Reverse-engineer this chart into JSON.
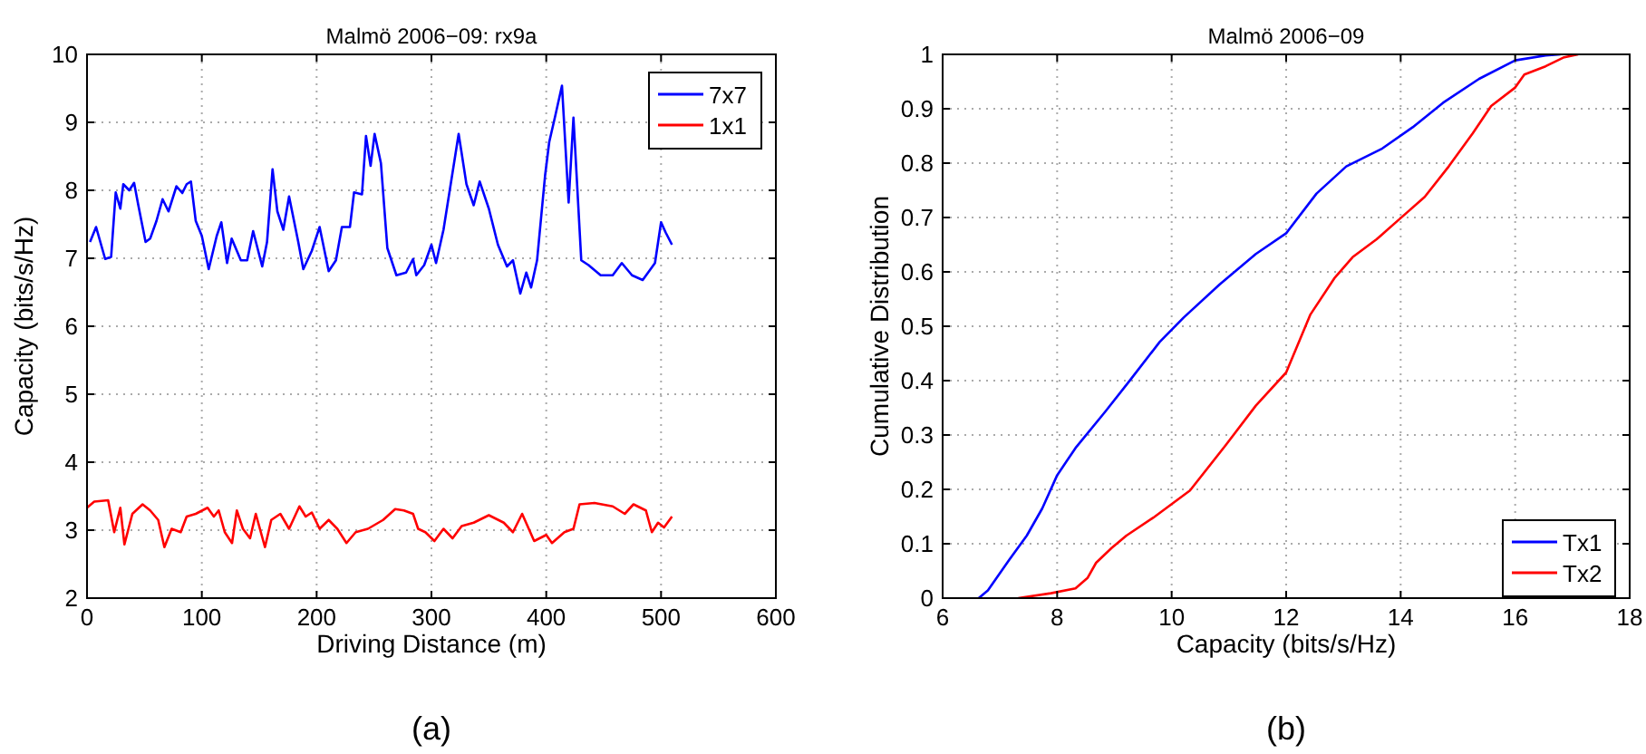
{
  "chart_data": [
    {
      "type": "line",
      "title": "Malmö 2006−09: rx9a",
      "xlabel": "Driving Distance (m)",
      "ylabel": "Capacity (bits/s/Hz)",
      "annotations": [
        "(a)"
      ],
      "xlim": [
        0,
        600
      ],
      "xticks": [
        0,
        100,
        200,
        300,
        400,
        500,
        600
      ],
      "ylim": [
        2,
        10
      ],
      "yticks": [
        2,
        3,
        4,
        5,
        6,
        7,
        8,
        9,
        10
      ],
      "grid": true,
      "legend": "top right",
      "series": [
        {
          "name": "7x7",
          "color": "#0000ff",
          "x": [
            2.6,
            7.9,
            15.8,
            21,
            25,
            29,
            31.6,
            36.8,
            41,
            44.7,
            51,
            55,
            60.5,
            65.8,
            71,
            77.9,
            83,
            86.8,
            90.5,
            94.7,
            100,
            106,
            113,
            117,
            122,
            126,
            134,
            139.5,
            144.7,
            152.6,
            156.8,
            161.6,
            165.8,
            171,
            176,
            184,
            188.4,
            195.8,
            202.6,
            210.5,
            216.8,
            222,
            229,
            232.6,
            239.5,
            243,
            247,
            250.5,
            256,
            261.6,
            269.5,
            277.9,
            284,
            286.8,
            293.7,
            300,
            304,
            310.5,
            318,
            323.7,
            330.5,
            336.8,
            342,
            350,
            357.9,
            365.8,
            371,
            377.4,
            382.6,
            386.8,
            392,
            399,
            402.6,
            407.9,
            413.7,
            419.5,
            423.7,
            430.5,
            436.8,
            447.4,
            457.9,
            465.8,
            474.7,
            484,
            494.7,
            500,
            504,
            509.5
          ],
          "values": [
            7.24,
            7.46,
            6.99,
            7.02,
            7.97,
            7.73,
            8.09,
            8.0,
            8.11,
            7.78,
            7.24,
            7.29,
            7.55,
            7.87,
            7.69,
            8.06,
            7.96,
            8.09,
            8.13,
            7.55,
            7.33,
            6.84,
            7.33,
            7.53,
            6.93,
            7.29,
            6.97,
            6.97,
            7.4,
            6.88,
            7.24,
            8.31,
            7.69,
            7.42,
            7.91,
            7.24,
            6.84,
            7.11,
            7.46,
            6.81,
            6.97,
            7.46,
            7.46,
            7.97,
            7.94,
            8.8,
            8.36,
            8.83,
            8.4,
            7.15,
            6.75,
            6.79,
            6.99,
            6.75,
            6.9,
            7.2,
            6.93,
            7.42,
            8.22,
            8.83,
            8.09,
            7.78,
            8.13,
            7.73,
            7.2,
            6.88,
            6.97,
            6.48,
            6.79,
            6.57,
            6.97,
            8.22,
            8.71,
            9.1,
            9.54,
            7.82,
            9.07,
            6.97,
            6.9,
            6.75,
            6.75,
            6.93,
            6.75,
            6.68,
            6.93,
            7.53,
            7.38,
            7.2
          ]
        },
        {
          "name": "1x1",
          "color": "#ff0000",
          "x": [
            0,
            6.3,
            18.4,
            23.7,
            29,
            32.6,
            39.5,
            48.4,
            55,
            62,
            67.4,
            73.7,
            81.6,
            86.8,
            94.7,
            105,
            110.5,
            114.7,
            120,
            126.3,
            130.5,
            135.8,
            142,
            147,
            155,
            160.5,
            168.4,
            176,
            185,
            190.5,
            195.8,
            202.6,
            210.5,
            218,
            226,
            234,
            244.7,
            257.9,
            268.4,
            276,
            284,
            288.4,
            294.7,
            302.6,
            310.5,
            318.4,
            326.3,
            336.8,
            350,
            363,
            371,
            379,
            389.5,
            400,
            405,
            415.8,
            423.7,
            429,
            442,
            457.9,
            468.4,
            476,
            486.8,
            492,
            497.4,
            502.6,
            509.5
          ],
          "values": [
            3.33,
            3.42,
            3.44,
            2.97,
            3.33,
            2.79,
            3.24,
            3.38,
            3.29,
            3.15,
            2.75,
            3.02,
            2.97,
            3.2,
            3.24,
            3.33,
            3.2,
            3.29,
            2.97,
            2.81,
            3.29,
            3.02,
            2.88,
            3.24,
            2.75,
            3.15,
            3.24,
            3.02,
            3.35,
            3.2,
            3.26,
            3.02,
            3.15,
            3.02,
            2.81,
            2.97,
            3.02,
            3.15,
            3.31,
            3.29,
            3.24,
            3.02,
            2.97,
            2.84,
            3.02,
            2.88,
            3.06,
            3.11,
            3.22,
            3.11,
            2.97,
            3.24,
            2.84,
            2.93,
            2.81,
            2.97,
            3.02,
            3.38,
            3.4,
            3.35,
            3.24,
            3.38,
            3.29,
            2.97,
            3.11,
            3.04,
            3.2
          ]
        }
      ]
    },
    {
      "type": "line",
      "title": "Malmö 2006−09",
      "xlabel": "Capacity (bits/s/Hz)",
      "ylabel": "Cumulative Distribution",
      "annotations": [
        "(b)"
      ],
      "xlim": [
        6,
        18
      ],
      "xticks": [
        6,
        8,
        10,
        12,
        14,
        16,
        18
      ],
      "ylim": [
        0,
        1
      ],
      "yticks": [
        0,
        0.1,
        0.2,
        0.3,
        0.4,
        0.5,
        0.6,
        0.7,
        0.8,
        0.9,
        1
      ],
      "grid": true,
      "legend": "bottom right",
      "series": [
        {
          "name": "Tx1",
          "color": "#0000ff",
          "x": [
            6.63,
            6.79,
            7.16,
            7.47,
            7.74,
            8.0,
            8.32,
            8.84,
            9.26,
            9.79,
            10.21,
            10.84,
            11.47,
            12.0,
            12.53,
            13.05,
            13.68,
            14.21,
            14.74,
            15.37,
            16.0,
            16.53,
            16.79
          ],
          "values": [
            0,
            0.014,
            0.07,
            0.115,
            0.165,
            0.226,
            0.276,
            0.343,
            0.399,
            0.471,
            0.516,
            0.577,
            0.633,
            0.671,
            0.744,
            0.794,
            0.827,
            0.866,
            0.911,
            0.955,
            0.989,
            0.998,
            1
          ]
        },
        {
          "name": "Tx2",
          "color": "#ff0000",
          "x": [
            7.32,
            7.89,
            8.32,
            8.53,
            8.68,
            8.95,
            9.21,
            9.68,
            10.32,
            10.95,
            11.47,
            12.0,
            12.42,
            12.84,
            13.16,
            13.58,
            14.0,
            14.42,
            14.84,
            15.26,
            15.58,
            16.0,
            16.16,
            16.53,
            16.84,
            17.1
          ],
          "values": [
            0,
            0.009,
            0.018,
            0.037,
            0.065,
            0.092,
            0.115,
            0.148,
            0.198,
            0.282,
            0.354,
            0.415,
            0.521,
            0.588,
            0.627,
            0.66,
            0.699,
            0.738,
            0.794,
            0.855,
            0.905,
            0.939,
            0.963,
            0.978,
            0.994,
            1
          ]
        }
      ]
    }
  ]
}
